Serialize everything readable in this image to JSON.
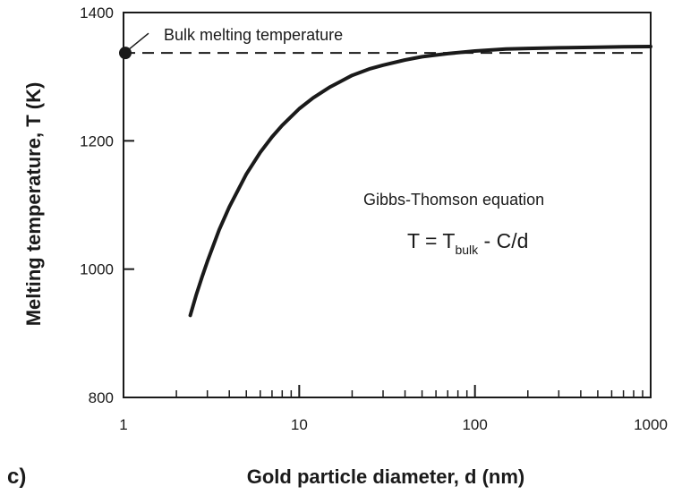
{
  "panel_label": "c)",
  "chart_data": {
    "type": "line",
    "title": "",
    "xlabel": "Gold particle diameter, d (nm)",
    "ylabel": "Melting temperature, T (K)",
    "x_scale": "log",
    "xlim": [
      1,
      1000
    ],
    "ylim": [
      800,
      1400
    ],
    "x_tick_labels": [
      "1",
      "10",
      "100",
      "1000"
    ],
    "x_ticks": [
      1,
      10,
      100,
      1000
    ],
    "y_tick_labels": [
      "800",
      "1000",
      "1200",
      "1400"
    ],
    "y_ticks": [
      800,
      1000,
      1200,
      1400
    ],
    "grid": false,
    "legend": "none",
    "series": [
      {
        "x": [
          2.4,
          2.6,
          2.8,
          3,
          3.5,
          4,
          5,
          6,
          7,
          8,
          10,
          12,
          15,
          20,
          25,
          30,
          40,
          50,
          70,
          100,
          150,
          200,
          300,
          500,
          700,
          1000
        ],
        "y": [
          928,
          961,
          988,
          1012,
          1061,
          1097,
          1148,
          1182,
          1206,
          1224,
          1250,
          1267,
          1284,
          1302,
          1312,
          1318,
          1326,
          1331,
          1336,
          1340,
          1343,
          1344,
          1345,
          1346,
          1346.5,
          1347
        ]
      }
    ],
    "reference_line": {
      "y": 1337,
      "style": "dashed"
    },
    "reference_point": {
      "x": 1,
      "y": 1337
    },
    "annotations": {
      "bulk_label": "Bulk melting temperature",
      "equation_title": "Gibbs-Thomson equation",
      "equation_lhs": "T = T",
      "equation_sub": "bulk",
      "equation_rhs": " - C/d"
    },
    "colors": {
      "ink": "#1a1a1a"
    }
  }
}
